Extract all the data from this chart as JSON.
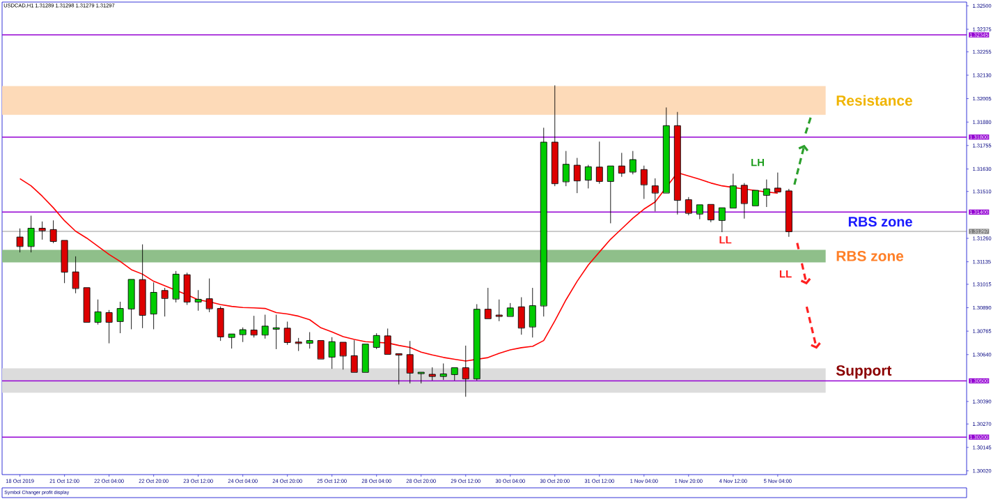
{
  "chart_data": {
    "type": "candlestick",
    "title": "USDCAD,H1  1.31289 1.31298 1.31279 1.31297",
    "categories": [
      "18 Oct 2019",
      null,
      null,
      null,
      "21 Oct 12:00",
      null,
      null,
      null,
      "22 Oct 04:00",
      null,
      null,
      null,
      "22 Oct 20:00",
      null,
      null,
      null,
      "23 Oct 12:00",
      null,
      null,
      null,
      "24 Oct 04:00",
      null,
      null,
      null,
      "24 Oct 20:00",
      null,
      null,
      null,
      "25 Oct 12:00",
      null,
      null,
      null,
      "28 Oct 04:00",
      null,
      null,
      null,
      "28 Oct 20:00",
      null,
      null,
      null,
      "29 Oct 12:00",
      null,
      null,
      null,
      "30 Oct 04:00",
      null,
      null,
      null,
      "30 Oct 20:00",
      null,
      null,
      null,
      "31 Oct 12:00",
      null,
      null,
      null,
      "1 Nov 04:00",
      null,
      null,
      null,
      "1 Nov 20:00",
      null,
      null,
      null,
      "4 Nov 12:00",
      null,
      null,
      null,
      "5 Nov 04:00",
      null
    ],
    "ohlc": [
      [
        1.31267,
        1.31311,
        1.31187,
        1.31218
      ],
      [
        1.31218,
        1.31379,
        1.31187,
        1.31314
      ],
      [
        1.31314,
        1.31348,
        1.31255,
        1.31302
      ],
      [
        1.31307,
        1.31354,
        1.31236,
        1.31245
      ],
      [
        1.31249,
        1.31252,
        1.31023,
        1.31081
      ],
      [
        1.31081,
        1.31162,
        1.30969,
        1.30994
      ],
      [
        1.30997,
        1.31,
        1.30808,
        1.30814
      ],
      [
        1.30814,
        1.30932,
        1.30802,
        1.30868
      ],
      [
        1.30864,
        1.30876,
        1.30702,
        1.30814
      ],
      [
        1.30818,
        1.3092,
        1.30756,
        1.30886
      ],
      [
        1.30885,
        1.31044,
        1.30777,
        1.31041
      ],
      [
        1.3104,
        1.31226,
        1.30783,
        1.30851
      ],
      [
        1.30858,
        1.31023,
        1.30777,
        1.30972
      ],
      [
        1.30982,
        1.30994,
        1.30845,
        1.30941
      ],
      [
        1.30938,
        1.31084,
        1.3092,
        1.31069
      ],
      [
        1.31066,
        1.31075,
        1.30907,
        1.30922
      ],
      [
        1.30922,
        1.30982,
        1.30876,
        1.30935
      ],
      [
        1.30938,
        1.31044,
        1.30868,
        1.30886
      ],
      [
        1.30886,
        1.30895,
        1.30715,
        1.30736
      ],
      [
        1.30733,
        1.30758,
        1.30674,
        1.3075
      ],
      [
        1.30748,
        1.30783,
        1.30709,
        1.30773
      ],
      [
        1.30771,
        1.30845,
        1.30733,
        1.30746
      ],
      [
        1.30746,
        1.30851,
        1.30727,
        1.30792
      ],
      [
        1.30777,
        1.30851,
        1.30671,
        1.30783
      ],
      [
        1.30781,
        1.30814,
        1.30694,
        1.30706
      ],
      [
        1.30706,
        1.30727,
        1.30661,
        1.30702
      ],
      [
        1.30702,
        1.30758,
        1.30674,
        1.30715
      ],
      [
        1.30715,
        1.30721,
        1.30618,
        1.30618
      ],
      [
        1.30628,
        1.30731,
        1.30566,
        1.30709
      ],
      [
        1.30706,
        1.30709,
        1.30562,
        1.30634
      ],
      [
        1.30634,
        1.30715,
        1.30547,
        1.30547
      ],
      [
        1.30547,
        1.30702,
        1.30541,
        1.30696
      ],
      [
        1.3068,
        1.30752,
        1.30671,
        1.30742
      ],
      [
        1.3074,
        1.30777,
        1.30643,
        1.30643
      ],
      [
        1.30644,
        1.30647,
        1.30483,
        1.3064
      ],
      [
        1.3064,
        1.30711,
        1.30488,
        1.30543
      ],
      [
        1.30543,
        1.30553,
        1.30488,
        1.30543
      ],
      [
        1.30535,
        1.3057,
        1.30504,
        1.30525
      ],
      [
        1.30525,
        1.30591,
        1.30507,
        1.30537
      ],
      [
        1.30535,
        1.30578,
        1.30504,
        1.3057
      ],
      [
        1.3057,
        1.30686,
        1.30417,
        1.30512
      ],
      [
        1.30512,
        1.30907,
        1.30504,
        1.30882
      ],
      [
        1.30882,
        1.30994,
        1.30833,
        1.30833
      ],
      [
        1.30851,
        1.30932,
        1.3082,
        1.30845
      ],
      [
        1.30845,
        1.30913,
        1.3084,
        1.30889
      ],
      [
        1.30895,
        1.30944,
        1.30748,
        1.30783
      ],
      [
        1.30789,
        1.30994,
        1.30733,
        1.30901
      ],
      [
        1.30901,
        1.31848,
        1.30845,
        1.31773
      ],
      [
        1.31773,
        1.32074,
        1.3154,
        1.31553
      ],
      [
        1.31563,
        1.31724,
        1.3154,
        1.31655
      ],
      [
        1.3165,
        1.31687,
        1.31503,
        1.31568
      ],
      [
        1.31572,
        1.3165,
        1.31528,
        1.31642
      ],
      [
        1.3164,
        1.31774,
        1.31553,
        1.31565
      ],
      [
        1.31565,
        1.3165,
        1.31342,
        1.31646
      ],
      [
        1.31646,
        1.31714,
        1.3159,
        1.31609
      ],
      [
        1.31615,
        1.31724,
        1.31603,
        1.3168
      ],
      [
        1.31627,
        1.31646,
        1.31472,
        1.31547
      ],
      [
        1.3154,
        1.31578,
        1.31406,
        1.31503
      ],
      [
        1.31503,
        1.31956,
        1.31497,
        1.31861
      ],
      [
        1.31861,
        1.31932,
        1.31389,
        1.31464
      ],
      [
        1.31466,
        1.31478,
        1.31385,
        1.31395
      ],
      [
        1.31391,
        1.31439,
        1.31364,
        1.31439
      ],
      [
        1.31441,
        1.31447,
        1.31348,
        1.3136
      ],
      [
        1.31357,
        1.3143,
        1.31295,
        1.31423
      ],
      [
        1.31423,
        1.31603,
        1.31416,
        1.3154
      ],
      [
        1.31543,
        1.31553,
        1.31367,
        1.31447
      ],
      [
        1.31435,
        1.3152,
        1.31429,
        1.31516
      ],
      [
        1.31491,
        1.31572,
        1.31429,
        1.31524
      ],
      [
        1.31528,
        1.31609,
        1.31503,
        1.31509
      ],
      [
        1.31513,
        1.31522,
        1.3127,
        1.31297
      ]
    ],
    "colors": [
      "#dd0000",
      "#00cc00",
      "#dd0000",
      "#dd0000",
      "#dd0000",
      "#dd0000",
      "#dd0000",
      "#00cc00",
      "#dd0000",
      "#00cc00",
      "#00cc00",
      "#dd0000",
      "#00cc00",
      "#dd0000",
      "#00cc00",
      "#dd0000",
      "#00cc00",
      "#dd0000",
      "#dd0000",
      "#00cc00",
      "#00cc00",
      "#dd0000",
      "#00cc00",
      "#00cc00",
      "#dd0000",
      "#dd0000",
      "#00cc00",
      "#dd0000",
      "#00cc00",
      "#dd0000",
      "#dd0000",
      "#00cc00",
      "#00cc00",
      "#dd0000",
      "#dd0000",
      "#dd0000",
      "#00cc00",
      "#dd0000",
      "#00cc00",
      "#00cc00",
      "#dd0000",
      "#00cc00",
      "#dd0000",
      "#dd0000",
      "#00cc00",
      "#dd0000",
      "#00cc00",
      "#00cc00",
      "#dd0000",
      "#00cc00",
      "#dd0000",
      "#00cc00",
      "#dd0000",
      "#00cc00",
      "#dd0000",
      "#00cc00",
      "#dd0000",
      "#dd0000",
      "#00cc00",
      "#dd0000",
      "#dd0000",
      "#00cc00",
      "#dd0000",
      "#00cc00",
      "#00cc00",
      "#dd0000",
      "#00cc00",
      "#00cc00",
      "#dd0000",
      "#dd0000"
    ],
    "series": [
      {
        "type": "line",
        "color": "#ff0000",
        "values": [
          1.31578,
          1.3154,
          1.31485,
          1.31423,
          1.31354,
          1.31298,
          1.31261,
          1.31218,
          1.31174,
          1.31137,
          1.31093,
          1.31069,
          1.31031,
          1.31007,
          null,
          1.30959,
          1.30932,
          1.30922,
          1.30907,
          1.30897,
          1.30891,
          1.30889,
          1.30886,
          1.30864,
          1.30857,
          1.30845,
          1.30826,
          1.30783,
          1.30761,
          1.30736,
          1.30721,
          1.30709,
          1.30705,
          1.30702,
          1.30689,
          1.30678,
          1.30653,
          1.30638,
          1.30625,
          1.30615,
          1.30606,
          null,
          1.30624,
          1.30647,
          1.30665,
          1.30677,
          1.30684,
          1.30715,
          1.3082,
          1.30932,
          1.31031,
          1.31118,
          1.31187,
          1.31255,
          1.31311,
          1.31367,
          1.31416,
          1.31454,
          null,
          1.3161,
          1.31593,
          1.31575,
          1.31555,
          1.3154,
          null,
          1.31523,
          null,
          1.31507,
          1.31501,
          null
        ]
      }
    ],
    "ylim": [
      1.3,
      1.3252
    ],
    "yticks": [
      {
        "value": 1.325,
        "label": "1.32500"
      },
      {
        "value": 1.32375,
        "label": "1.32375"
      },
      {
        "value": 1.32255,
        "label": "1.32255"
      },
      {
        "value": 1.3213,
        "label": "1.32130"
      },
      {
        "value": 1.32005,
        "label": "1.32005"
      },
      {
        "value": 1.3188,
        "label": "1.31880"
      },
      {
        "value": 1.31755,
        "label": "1.31755"
      },
      {
        "value": 1.3163,
        "label": "1.31630"
      },
      {
        "value": 1.3151,
        "label": "1.31510"
      },
      {
        "value": 1.3126,
        "label": "1.31260"
      },
      {
        "value": 1.31135,
        "label": "1.31135"
      },
      {
        "value": 1.31015,
        "label": "1.31015"
      },
      {
        "value": 1.3089,
        "label": "1.30890"
      },
      {
        "value": 1.30765,
        "label": "1.30765"
      },
      {
        "value": 1.3064,
        "label": "1.30640"
      },
      {
        "value": 1.3039,
        "label": "1.30390"
      },
      {
        "value": 1.3027,
        "label": "1.30270"
      },
      {
        "value": 1.30145,
        "label": "1.30145"
      },
      {
        "value": 1.3002,
        "label": "1.30020"
      }
    ],
    "ref_lines": [
      {
        "axis": "y",
        "value": 1.32345,
        "label": "1.32345",
        "color": "#9400d3"
      },
      {
        "axis": "y",
        "value": 1.318,
        "label": "1.31800",
        "color": "#9400d3"
      },
      {
        "axis": "y",
        "value": 1.314,
        "label": "1.31400",
        "color": "#9400d3"
      },
      {
        "axis": "y",
        "value": 1.305,
        "label": "1.30500",
        "color": "#9400d3"
      },
      {
        "axis": "y",
        "value": 1.302,
        "label": "1.30200",
        "color": "#9400d3"
      },
      {
        "axis": "y",
        "value": 1.31297,
        "label": "1.31297",
        "color": "#808080"
      }
    ],
    "bands": [
      {
        "axis": "y",
        "from": 1.31919,
        "to": 1.32072,
        "label": "Resistance",
        "color": "#fddab8"
      },
      {
        "axis": "y",
        "from": 1.31132,
        "to": 1.31199,
        "label": "RBS zone",
        "color": "#8fbf8a"
      },
      {
        "axis": "y",
        "from": 1.30437,
        "to": 1.30567,
        "label": "Support",
        "color": "#dcdcdc"
      }
    ],
    "annotations": [
      "LH",
      "LL",
      "LL",
      "RBS zone",
      "Symbol Changer profit display"
    ]
  }
}
